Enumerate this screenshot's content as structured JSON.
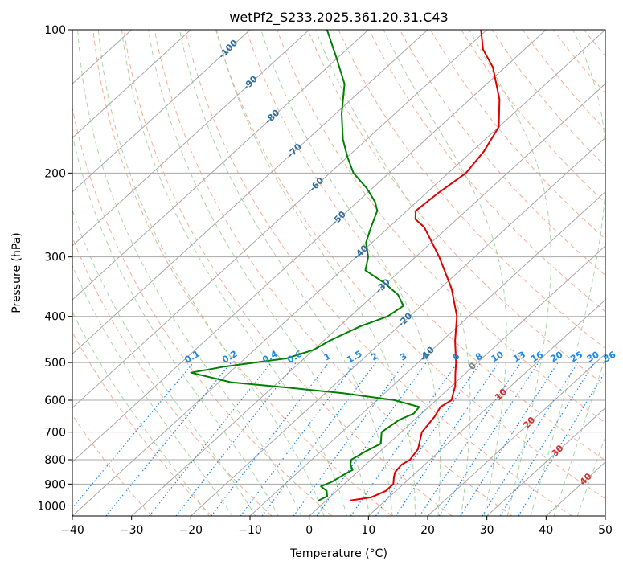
{
  "chart_data": {
    "type": "skew-t",
    "title": "wetPf2_S233.2025.361.20.31.C43",
    "xlabel": "Temperature (°C)",
    "ylabel": "Pressure (hPa)",
    "xlim": [
      -40,
      50
    ],
    "ylim": [
      1050,
      100
    ],
    "x_ticks": [
      -40,
      -30,
      -20,
      -10,
      0,
      10,
      20,
      30,
      40,
      50
    ],
    "x_tick_labels": [
      "−40",
      "−30",
      "−20",
      "−10",
      "0",
      "10",
      "20",
      "30",
      "40",
      "50"
    ],
    "y_ticks": [
      1000,
      900,
      800,
      700,
      600,
      500,
      400,
      300,
      200,
      100
    ],
    "y_tick_labels": [
      "1000",
      "900",
      "800",
      "700",
      "600",
      "500",
      "400",
      "300",
      "200",
      "100"
    ],
    "y_scale": "log",
    "skew": "isotherms slope upward to the right",
    "grid": true,
    "isotherm_labels": [
      "-100",
      "-90",
      "-80",
      "-70",
      "-60",
      "-50",
      "-40",
      "-30",
      "-20",
      "-10",
      "0",
      "10",
      "20",
      "30",
      "40"
    ],
    "mixing_ratio_labels": [
      "0.1",
      "0.2",
      "0.4",
      "0.6",
      "1",
      "1.5",
      "2",
      "3",
      "4",
      "6",
      "8",
      "10",
      "13",
      "16",
      "20",
      "25",
      "30",
      "36"
    ],
    "colors": {
      "temperature": "#e00000",
      "dewpoint": "#008000",
      "isotherm": "#a8a8a8",
      "dry_adiabat": "#f4a58a",
      "moist_adiabat": "#9fd09f",
      "mixing_ratio": "#1e88e5",
      "isotherm_label_cold": "#2e6f9e",
      "isotherm_label_zero": "#808080",
      "isotherm_label_warm": "#d32f2f"
    },
    "series": [
      {
        "name": "Temperature",
        "points": [
          [
            975,
            4
          ],
          [
            960,
            7
          ],
          [
            930,
            8.3
          ],
          [
            900,
            8.3
          ],
          [
            870,
            7.1
          ],
          [
            850,
            6.4
          ],
          [
            820,
            6.1
          ],
          [
            800,
            6.6
          ],
          [
            760,
            6
          ],
          [
            700,
            3.5
          ],
          [
            650,
            2.8
          ],
          [
            620,
            2
          ],
          [
            600,
            2.6
          ],
          [
            560,
            0.6
          ],
          [
            530,
            -1.5
          ],
          [
            500,
            -3.6
          ],
          [
            450,
            -7.8
          ],
          [
            400,
            -12
          ],
          [
            350,
            -18
          ],
          [
            300,
            -26
          ],
          [
            260,
            -34
          ],
          [
            250,
            -37
          ],
          [
            240,
            -38.5
          ],
          [
            220,
            -38
          ],
          [
            200,
            -37
          ],
          [
            180,
            -38
          ],
          [
            160,
            -40
          ],
          [
            140,
            -45
          ],
          [
            120,
            -52
          ],
          [
            110,
            -57
          ],
          [
            100,
            -61
          ]
        ]
      },
      {
        "name": "Dewpoint",
        "points": [
          [
            975,
            -1.3
          ],
          [
            955,
            -0.6
          ],
          [
            930,
            -1.7
          ],
          [
            910,
            -3.5
          ],
          [
            890,
            -2.5
          ],
          [
            860,
            -1.8
          ],
          [
            840,
            -1.2
          ],
          [
            820,
            -2.5
          ],
          [
            800,
            -3.3
          ],
          [
            770,
            -2.5
          ],
          [
            740,
            -1.3
          ],
          [
            700,
            -3.3
          ],
          [
            660,
            -2.6
          ],
          [
            640,
            -1.3
          ],
          [
            620,
            -1.6
          ],
          [
            600,
            -7
          ],
          [
            580,
            -17
          ],
          [
            565,
            -27
          ],
          [
            550,
            -38
          ],
          [
            525,
            -46.5
          ],
          [
            510,
            -42
          ],
          [
            490,
            -33
          ],
          [
            470,
            -30
          ],
          [
            450,
            -29
          ],
          [
            420,
            -26.5
          ],
          [
            400,
            -23.7
          ],
          [
            380,
            -23
          ],
          [
            360,
            -26
          ],
          [
            340,
            -30.5
          ],
          [
            320,
            -36
          ],
          [
            300,
            -38
          ],
          [
            280,
            -41
          ],
          [
            260,
            -43
          ],
          [
            240,
            -45
          ],
          [
            230,
            -47
          ],
          [
            215,
            -51
          ],
          [
            200,
            -56
          ],
          [
            185,
            -60
          ],
          [
            170,
            -64
          ],
          [
            150,
            -69
          ],
          [
            130,
            -74
          ],
          [
            115,
            -80
          ],
          [
            100,
            -87
          ]
        ]
      }
    ]
  }
}
